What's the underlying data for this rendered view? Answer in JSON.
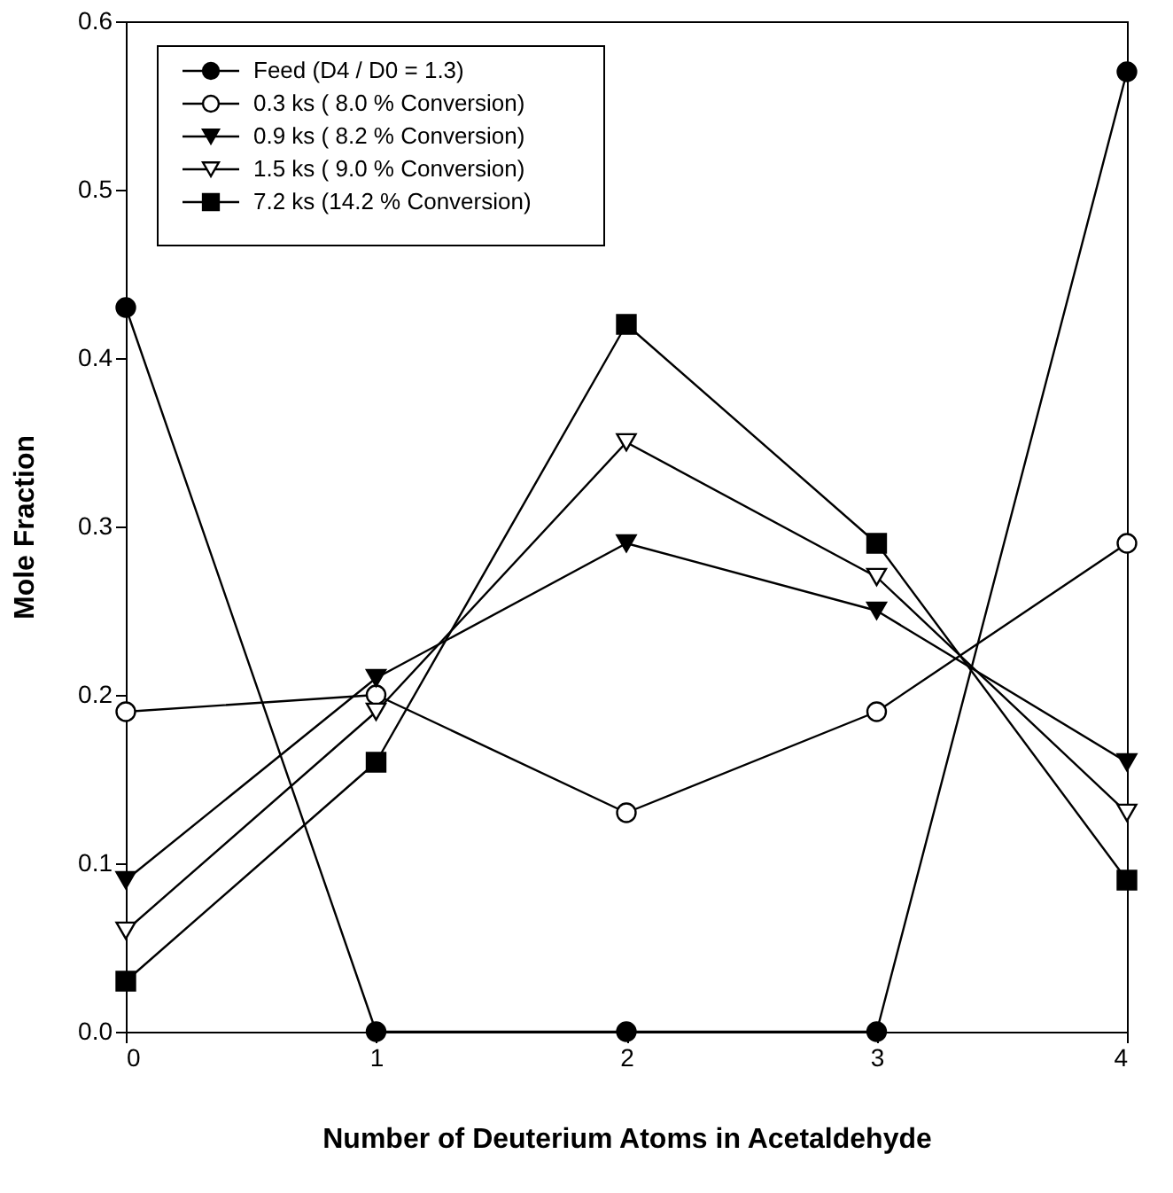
{
  "chart_data": {
    "type": "line",
    "xlabel": "Number of Deuterium Atoms in Acetaldehyde",
    "ylabel": "Mole Fraction",
    "x": [
      0,
      1,
      2,
      3,
      4
    ],
    "xlim": [
      0,
      4
    ],
    "xticks": [
      0,
      1,
      2,
      3,
      4
    ],
    "ylim": [
      0,
      0.6
    ],
    "yticks": [
      {
        "value": 0,
        "label": "0.0"
      },
      {
        "value": 0.1,
        "label": "0.1"
      },
      {
        "value": 0.2,
        "label": "0.2"
      },
      {
        "value": 0.3,
        "label": "0.3"
      },
      {
        "value": 0.4,
        "label": "0.4"
      },
      {
        "value": 0.5,
        "label": "0.5"
      },
      {
        "value": 0.6,
        "label": "0.6"
      }
    ],
    "grid": false,
    "legend": "top left",
    "line_style": "solid",
    "series": [
      {
        "name": "Feed (D4 / D0 = 1.3)",
        "color": "#000000",
        "marker": "circle",
        "values": [
          0.43,
          0,
          0,
          0,
          0.57
        ]
      },
      {
        "name": "0.3 ks (  8.0 % Conversion)",
        "color": "#ffffff",
        "marker": "circle",
        "values": [
          0.19,
          0.2,
          0.13,
          0.19,
          0.29
        ]
      },
      {
        "name": "0.9 ks (  8.2 % Conversion)",
        "color": "#000000",
        "marker": "triangle",
        "values": [
          0.09,
          0.21,
          0.29,
          0.25,
          0.16
        ]
      },
      {
        "name": "1.5 ks (  9.0 % Conversion)",
        "color": "#ffffff",
        "marker": "triangle",
        "values": [
          0.06,
          0.19,
          0.35,
          0.27,
          0.13
        ]
      },
      {
        "name": "7.2 ks (14.2 % Conversion)",
        "color": "#000000",
        "marker": "square",
        "values": [
          0.03,
          0.16,
          0.42,
          0.29,
          0.09
        ]
      }
    ]
  }
}
